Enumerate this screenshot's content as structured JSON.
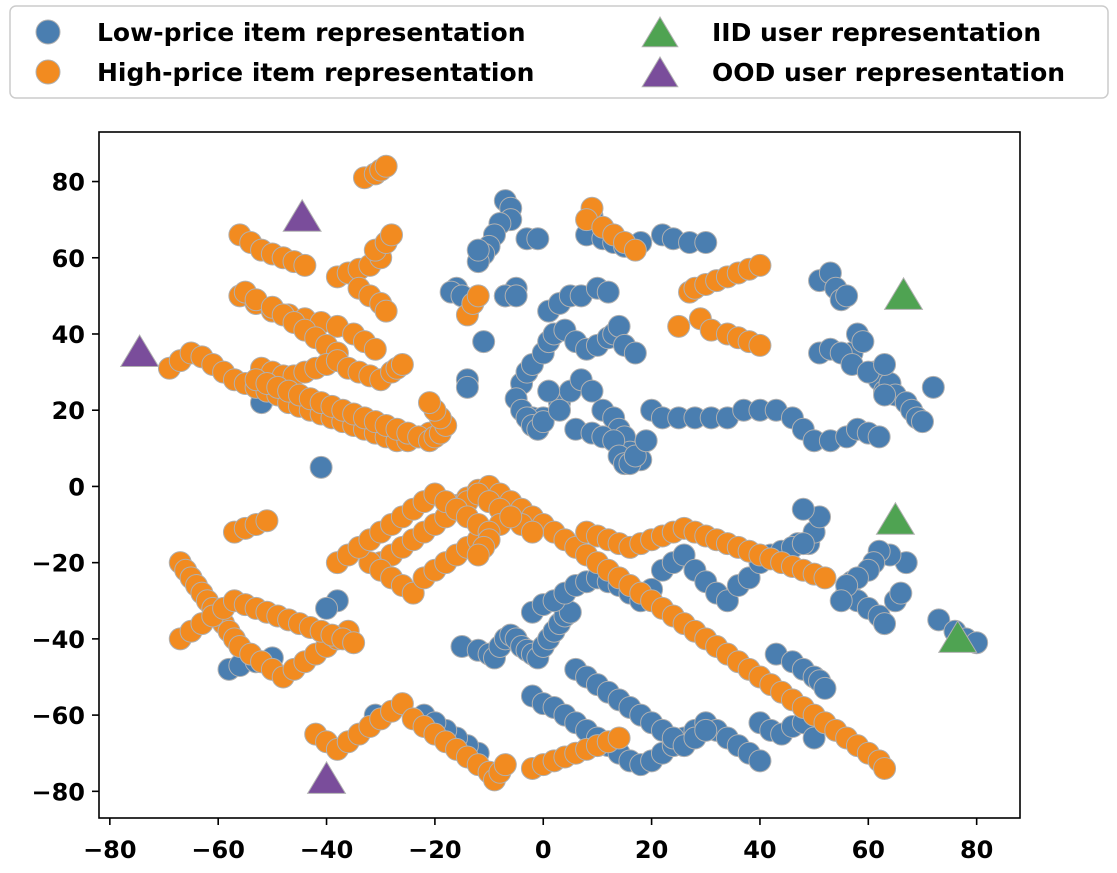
{
  "chart_data": {
    "type": "scatter",
    "title": "",
    "xlabel": "",
    "ylabel": "",
    "xlim": [
      -82,
      88
    ],
    "ylim": [
      -87,
      93
    ],
    "xticks": [
      -80,
      -60,
      -40,
      -20,
      0,
      20,
      40,
      60,
      80
    ],
    "yticks": [
      -80,
      -60,
      -40,
      -20,
      0,
      20,
      40,
      60,
      80
    ],
    "grid": false,
    "legend_position": "top",
    "colors": {
      "low": "#4a7eb0",
      "high": "#f28b20",
      "iid": "#4fa352",
      "ood": "#7a4d9b",
      "marker_edge": "#b0b0b0"
    },
    "series": [
      {
        "name": "Low-price item representation",
        "marker": "circle",
        "x": [
          -7,
          -6,
          -6,
          -8,
          -9,
          -10,
          -11,
          -12,
          -12,
          -3,
          -1,
          -5,
          -7,
          -16,
          -17,
          -15,
          -7,
          -5,
          1,
          3,
          5,
          7,
          10,
          12,
          8,
          9,
          11,
          13,
          15,
          18,
          22,
          24,
          27,
          30,
          -4,
          -3,
          -2,
          0,
          1,
          2,
          4,
          6,
          8,
          10,
          12,
          13,
          14,
          15,
          17,
          -5,
          -4,
          -2,
          -1,
          0,
          3,
          5,
          7,
          9,
          11,
          13,
          14,
          15,
          16,
          18,
          -11,
          -14,
          -14,
          -3,
          -2,
          -1,
          0,
          1,
          3,
          6,
          9,
          11,
          13,
          14,
          15,
          16,
          17,
          19,
          20,
          22,
          25,
          28,
          31,
          34,
          37,
          40,
          43,
          46,
          48,
          50,
          53,
          56,
          58,
          60,
          62,
          51,
          53,
          54,
          55,
          56,
          57,
          58,
          59,
          61,
          62,
          63,
          64,
          65,
          67,
          68,
          69,
          70,
          72,
          51,
          53,
          55,
          57,
          60,
          63,
          63,
          -44,
          -41,
          -52,
          -58,
          -56,
          -53,
          -50,
          -31,
          -22,
          49,
          50,
          51,
          48,
          47,
          57,
          56,
          58,
          60,
          62,
          63,
          65,
          66,
          67,
          64,
          62,
          61,
          60,
          58,
          56,
          55,
          73,
          76,
          78,
          80,
          43,
          46,
          48,
          50,
          51,
          52,
          -2,
          0,
          2,
          4,
          6,
          8,
          10,
          12,
          14,
          16,
          18,
          20,
          22,
          24,
          26,
          28,
          30,
          32,
          34,
          36,
          38,
          40,
          -15,
          -12,
          -10,
          -9,
          -8,
          -7,
          -6,
          -5,
          -4,
          -3,
          -2,
          -1,
          0,
          1,
          2,
          3,
          4,
          5,
          6,
          8,
          10,
          12,
          14,
          16,
          18,
          20,
          22,
          24,
          26,
          28,
          30,
          -2,
          0,
          2,
          4,
          6,
          8,
          10,
          12,
          14,
          16,
          18,
          20,
          22,
          24,
          26,
          28,
          30,
          32,
          34,
          36,
          38,
          40,
          42,
          44,
          46,
          48,
          40,
          42,
          44,
          46,
          48,
          50,
          -38,
          -40,
          -12,
          -14,
          -16,
          -18,
          -20
        ],
        "y": [
          75,
          73,
          70,
          69,
          66,
          63,
          61,
          59,
          62,
          65,
          65,
          52,
          50,
          52,
          51,
          50,
          50,
          50,
          46,
          48,
          50,
          50,
          52,
          51,
          66,
          71,
          65,
          64,
          63,
          64,
          66,
          65,
          64,
          64,
          27,
          30,
          32,
          35,
          38,
          40,
          41,
          38,
          36,
          37,
          39,
          40,
          42,
          37,
          35,
          23,
          20,
          18,
          15,
          18,
          22,
          25,
          28,
          25,
          20,
          18,
          15,
          13,
          9,
          7,
          38,
          28,
          26,
          18,
          16,
          15,
          17,
          25,
          20,
          15,
          14,
          13,
          12,
          8,
          6,
          6,
          8,
          12,
          20,
          18,
          18,
          18,
          18,
          18,
          20,
          20,
          20,
          18,
          15,
          12,
          12,
          13,
          15,
          14,
          13,
          54,
          56,
          52,
          49,
          50,
          35,
          40,
          38,
          30,
          28,
          25,
          27,
          24,
          22,
          20,
          18,
          17,
          26,
          35,
          36,
          35,
          32,
          30,
          32,
          24,
          23,
          5,
          22,
          -48,
          -47,
          -46,
          -45,
          -60,
          -60,
          -15,
          -12,
          -8,
          -6,
          -15,
          -25,
          -28,
          -30,
          -32,
          -34,
          -36,
          -30,
          -28,
          -20,
          -18,
          -17,
          -20,
          -22,
          -24,
          -26,
          -30,
          -35,
          -38,
          -40,
          -41,
          -44,
          -46,
          -48,
          -50,
          -51,
          -53,
          -55,
          -57,
          -58,
          -60,
          -62,
          -64,
          -66,
          -68,
          -70,
          -72,
          -73,
          -72,
          -70,
          -68,
          -66,
          -64,
          -62,
          -64,
          -66,
          -68,
          -70,
          -72,
          -42,
          -43,
          -44,
          -45,
          -42,
          -40,
          -39,
          -40,
          -42,
          -43,
          -44,
          -45,
          -42,
          -40,
          -38,
          -36,
          -34,
          -33,
          -48,
          -50,
          -52,
          -54,
          -56,
          -58,
          -60,
          -62,
          -64,
          -66,
          -68,
          -66,
          -64,
          -33,
          -31,
          -30,
          -28,
          -26,
          -25,
          -24,
          -25,
          -26,
          -28,
          -30,
          -27,
          -22,
          -20,
          -18,
          -22,
          -25,
          -28,
          -30,
          -26,
          -24,
          -20,
          -18,
          -17,
          -16,
          -15,
          -62,
          -64,
          -65,
          -63,
          -62,
          -66,
          -30,
          -32,
          -70,
          -68,
          -66,
          -64,
          -62
        ]
      },
      {
        "name": "High-price item representation",
        "marker": "circle",
        "x": [
          -56,
          -54,
          -52,
          -50,
          -48,
          -46,
          -44,
          -56,
          -53,
          -50,
          -47,
          -44,
          -41,
          -38,
          -35,
          -33,
          -31,
          -38,
          -36,
          -34,
          -32,
          -30,
          -31,
          -29,
          -28,
          -34,
          -32,
          -30,
          -29,
          -55,
          -53,
          -50,
          -48,
          -46,
          -44,
          -42,
          -40,
          -38,
          -52,
          -50,
          -48,
          -46,
          -44,
          -42,
          -40,
          -38,
          -36,
          -34,
          -32,
          -30,
          -28,
          -27,
          -26,
          -69,
          -67,
          -65,
          -63,
          -61,
          -59,
          -57,
          -55,
          -53,
          -51,
          -49,
          -47,
          -45,
          -43,
          -41,
          -39,
          -37,
          -35,
          -33,
          -31,
          -29,
          -27,
          -25,
          -23,
          -21,
          -53,
          -51,
          -49,
          -47,
          -45,
          -43,
          -41,
          -39,
          -37,
          -35,
          -33,
          -31,
          -29,
          -27,
          -25,
          -23,
          -21,
          -20,
          -19,
          -18,
          -19,
          -20,
          -21,
          -14,
          -13,
          -12,
          9,
          8,
          11,
          13,
          15,
          17,
          27,
          28,
          30,
          32,
          34,
          36,
          38,
          40,
          25,
          29,
          31,
          34,
          36,
          38,
          40,
          -16,
          -14,
          -12,
          -10,
          -8,
          -6,
          -4,
          -2,
          0,
          2,
          4,
          6,
          8,
          10,
          12,
          14,
          16,
          18,
          20,
          22,
          24,
          26,
          28,
          30,
          32,
          34,
          36,
          38,
          40,
          42,
          44,
          46,
          48,
          50,
          52,
          54,
          56,
          58,
          60,
          62,
          63,
          -30,
          -28,
          -26,
          -24,
          -22,
          -20,
          -18,
          -16,
          -14,
          -12,
          -10,
          -8,
          -6,
          -4,
          -2,
          -32,
          -30,
          -28,
          -26,
          -24,
          -22,
          -20,
          -18,
          -16,
          -14,
          -12,
          -10,
          -8,
          -6,
          -57,
          -55,
          -53,
          -51,
          -67,
          -66,
          -65,
          -64,
          -63,
          -62,
          -61,
          -60,
          -59,
          -58,
          -57,
          -56,
          -54,
          -52,
          -50,
          -48,
          -46,
          -44,
          -42,
          -40,
          -38,
          -36,
          -67,
          -65,
          -63,
          -61,
          -59,
          -57,
          -55,
          -53,
          -51,
          -49,
          -47,
          -45,
          -43,
          -41,
          -39,
          -37,
          -35,
          -42,
          -40,
          -38,
          -36,
          -34,
          -32,
          -30,
          -28,
          -26,
          -24,
          -22,
          -20,
          -18,
          -16,
          -14,
          -12,
          -10,
          -9,
          -8,
          -7,
          -2,
          0,
          2,
          4,
          6,
          8,
          10,
          12,
          14,
          -38,
          -36,
          -34,
          -32,
          -30,
          -28,
          -26,
          -24,
          -22,
          -20,
          -18,
          -16,
          -14,
          -12,
          -10,
          -10,
          -11,
          -12,
          8,
          10,
          12,
          14,
          16,
          18,
          20,
          22,
          24,
          26,
          28,
          30,
          32,
          34,
          36,
          38,
          40,
          42,
          44,
          46,
          48,
          50,
          52,
          -33,
          -31,
          -30,
          -29
        ],
        "y": [
          66,
          64,
          62,
          61,
          60,
          59,
          58,
          50,
          48,
          46,
          45,
          44,
          43,
          42,
          40,
          38,
          36,
          55,
          56,
          57,
          58,
          60,
          62,
          64,
          66,
          52,
          50,
          48,
          46,
          51,
          49,
          47,
          45,
          43,
          41,
          39,
          37,
          35,
          31,
          30,
          29,
          29,
          30,
          31,
          32,
          33,
          31,
          30,
          29,
          28,
          30,
          31,
          32,
          31,
          33,
          35,
          34,
          32,
          30,
          28,
          27,
          26,
          25,
          24,
          22,
          21,
          20,
          19,
          18,
          17,
          16,
          15,
          14,
          13,
          12,
          12,
          13,
          14,
          28,
          27,
          26,
          25,
          24,
          23,
          22,
          21,
          20,
          19,
          18,
          17,
          16,
          15,
          14,
          13,
          12,
          13,
          14,
          16,
          18,
          20,
          22,
          45,
          48,
          50,
          73,
          70,
          68,
          66,
          64,
          62,
          51,
          52,
          53,
          54,
          55,
          56,
          57,
          58,
          42,
          44,
          41,
          40,
          39,
          38,
          37,
          -5,
          -3,
          -1,
          0,
          -2,
          -4,
          -6,
          -8,
          -10,
          -12,
          -14,
          -16,
          -18,
          -20,
          -22,
          -24,
          -26,
          -28,
          -30,
          -32,
          -34,
          -36,
          -38,
          -40,
          -42,
          -44,
          -46,
          -48,
          -50,
          -52,
          -54,
          -56,
          -58,
          -60,
          -62,
          -64,
          -66,
          -68,
          -70,
          -72,
          -74,
          -20,
          -18,
          -16,
          -14,
          -12,
          -10,
          -8,
          -6,
          -4,
          -2,
          -4,
          -6,
          -8,
          -10,
          -12,
          -20,
          -22,
          -24,
          -26,
          -28,
          -24,
          -22,
          -20,
          -18,
          -16,
          -14,
          -12,
          -10,
          -8,
          -12,
          -11,
          -10,
          -9,
          -20,
          -22,
          -24,
          -26,
          -28,
          -30,
          -32,
          -34,
          -36,
          -38,
          -40,
          -42,
          -44,
          -46,
          -48,
          -50,
          -48,
          -46,
          -44,
          -42,
          -40,
          -38,
          -40,
          -38,
          -36,
          -34,
          -32,
          -30,
          -31,
          -32,
          -33,
          -34,
          -35,
          -36,
          -37,
          -38,
          -39,
          -40,
          -41,
          -65,
          -67,
          -69,
          -67,
          -65,
          -63,
          -61,
          -59,
          -57,
          -61,
          -63,
          -65,
          -67,
          -69,
          -71,
          -73,
          -75,
          -77,
          -75,
          -73,
          -74,
          -73,
          -72,
          -71,
          -70,
          -69,
          -68,
          -67,
          -66,
          -20,
          -18,
          -16,
          -14,
          -12,
          -10,
          -8,
          -6,
          -4,
          -2,
          -4,
          -6,
          -8,
          -10,
          -12,
          -14,
          -16,
          -18,
          -12,
          -13,
          -14,
          -15,
          -16,
          -15,
          -14,
          -13,
          -12,
          -11,
          -12,
          -13,
          -14,
          -15,
          -16,
          -17,
          -18,
          -19,
          -20,
          -21,
          -22,
          -23,
          -24,
          81,
          82,
          83,
          84
        ]
      },
      {
        "name": "IID user representation",
        "marker": "triangle",
        "x": [
          66.5,
          65,
          76.5
        ],
        "y": [
          50,
          -9,
          -40
        ]
      },
      {
        "name": "OOD user representation",
        "marker": "triangle",
        "x": [
          -74.5,
          -44.5,
          -40
        ],
        "y": [
          35,
          70.5,
          -77
        ]
      }
    ]
  }
}
